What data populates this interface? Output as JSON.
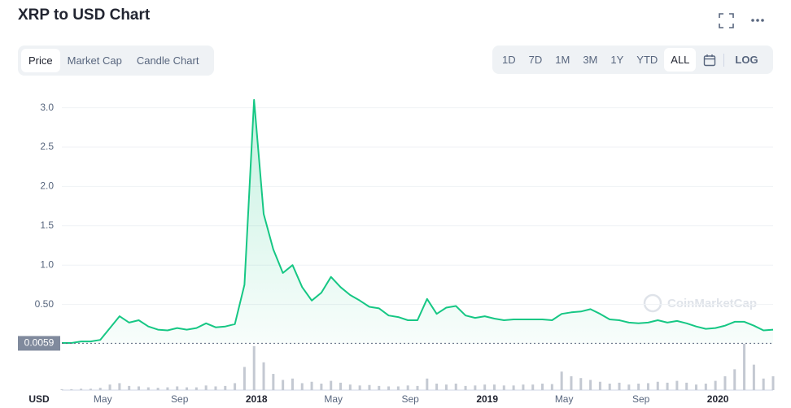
{
  "header": {
    "title": "XRP to USD Chart",
    "tabs": [
      "Price",
      "Market Cap",
      "Candle Chart"
    ],
    "ranges": [
      "1D",
      "7D",
      "1M",
      "3M",
      "1Y",
      "YTD",
      "ALL"
    ],
    "log_button": "LOG"
  },
  "chart_data": {
    "type": "line",
    "color": "#16c784",
    "watermark": "CoinMarketCap",
    "currency": "USD",
    "categories": [
      null,
      null,
      null,
      null,
      "May",
      null,
      null,
      null,
      null,
      null,
      null,
      null,
      "Sep",
      null,
      null,
      null,
      null,
      null,
      null,
      null,
      "2018",
      null,
      null,
      null,
      null,
      null,
      null,
      null,
      "May",
      null,
      null,
      null,
      null,
      null,
      null,
      null,
      "Sep",
      null,
      null,
      null,
      null,
      null,
      null,
      null,
      "2019",
      null,
      null,
      null,
      null,
      null,
      null,
      null,
      "May",
      null,
      null,
      null,
      null,
      null,
      null,
      null,
      "Sep",
      null,
      null,
      null,
      null,
      null,
      null,
      null,
      "2020",
      null,
      null,
      null,
      null,
      null,
      null
    ],
    "series": [
      {
        "name": "Price",
        "values": [
          0.01,
          0.01,
          0.03,
          0.03,
          0.05,
          0.2,
          0.35,
          0.27,
          0.3,
          0.22,
          0.18,
          0.17,
          0.2,
          0.18,
          0.2,
          0.26,
          0.21,
          0.22,
          0.25,
          0.75,
          3.1,
          1.65,
          1.2,
          0.9,
          1.0,
          0.72,
          0.55,
          0.65,
          0.85,
          0.72,
          0.62,
          0.55,
          0.47,
          0.45,
          0.36,
          0.34,
          0.3,
          0.3,
          0.57,
          0.38,
          0.46,
          0.48,
          0.36,
          0.33,
          0.35,
          0.32,
          0.3,
          0.31,
          0.31,
          0.31,
          0.31,
          0.3,
          0.38,
          0.4,
          0.41,
          0.44,
          0.38,
          0.31,
          0.3,
          0.27,
          0.26,
          0.27,
          0.3,
          0.27,
          0.29,
          0.26,
          0.22,
          0.19,
          0.2,
          0.23,
          0.28,
          0.28,
          0.23,
          0.17,
          0.18
        ]
      },
      {
        "name": "Volume",
        "values": [
          2,
          2,
          3,
          3,
          5,
          12,
          15,
          9,
          8,
          6,
          5,
          6,
          8,
          6,
          6,
          10,
          8,
          9,
          15,
          50,
          95,
          60,
          35,
          22,
          25,
          15,
          18,
          14,
          20,
          16,
          12,
          10,
          11,
          9,
          8,
          8,
          10,
          9,
          25,
          14,
          12,
          14,
          9,
          10,
          12,
          12,
          10,
          10,
          12,
          12,
          14,
          13,
          40,
          30,
          26,
          22,
          18,
          14,
          16,
          12,
          14,
          15,
          18,
          16,
          20,
          16,
          12,
          14,
          20,
          30,
          45,
          100,
          55,
          25,
          30
        ]
      }
    ],
    "current_value": 0.0059,
    "current_label": "0.0059",
    "ylim": [
      0,
      3.35
    ],
    "yticks": [
      {
        "value": 0.5,
        "label": "0.50"
      },
      {
        "value": 1,
        "label": "1.0"
      },
      1.5,
      {
        "value": 2,
        "label": "2.0"
      },
      2.5,
      {
        "value": 3,
        "label": "3.0"
      }
    ],
    "grid": true
  }
}
